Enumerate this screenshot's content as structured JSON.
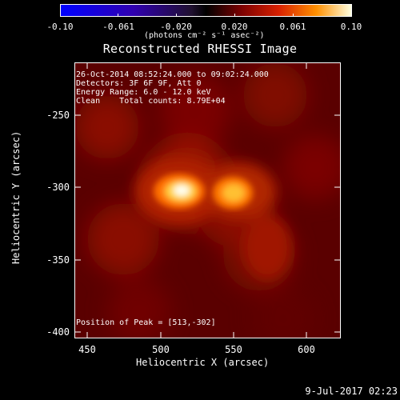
{
  "colorbar": {
    "ticks": [
      "-0.10",
      "-0.061",
      "-0.020",
      "0.020",
      "0.061",
      "0.10"
    ],
    "units": "(photons cm⁻² s⁻¹ asec⁻²)"
  },
  "title": "Reconstructed RHESSI Image",
  "info": {
    "line1": "26-Oct-2014 08:52:24.000 to 09:02:24.000",
    "line2": "Detectors: 3F 6F 9F, Att 0",
    "line3": "Energy Range: 6.0 - 12.0 keV",
    "line4": "Clean    Total counts: 8.79E+04"
  },
  "peak_label": "Position of Peak = [513,-302]",
  "y_axis": {
    "title": "Heliocentric Y (arcsec)",
    "ticks": [
      "-250",
      "-300",
      "-350",
      "-400"
    ]
  },
  "x_axis": {
    "title": "Heliocentric X (arcsec)",
    "ticks": [
      "450",
      "500",
      "550",
      "600"
    ]
  },
  "timestamp": "9-Jul-2017 02:23"
}
